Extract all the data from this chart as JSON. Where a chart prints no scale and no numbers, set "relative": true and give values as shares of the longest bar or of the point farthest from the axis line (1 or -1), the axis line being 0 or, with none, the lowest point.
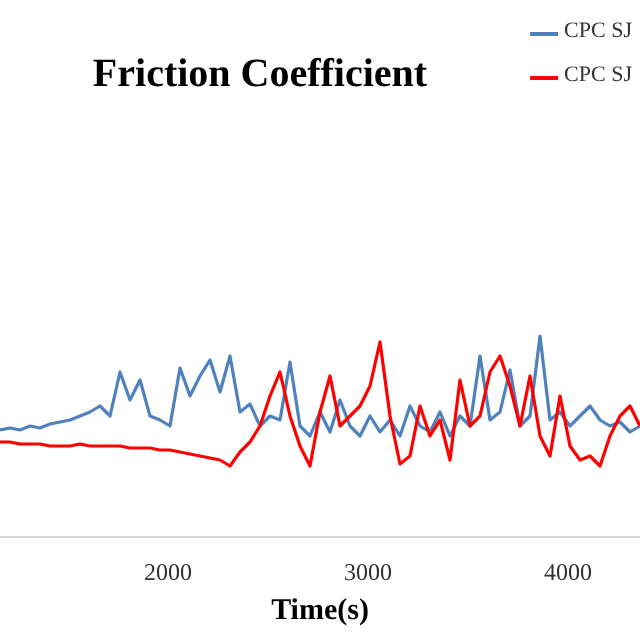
{
  "chart_data": {
    "type": "line",
    "title": "Friction Coefficient",
    "xlabel": "Time(s)",
    "relative": true,
    "xlim": [
      1160,
      4360
    ],
    "xticks": [
      2000,
      3000,
      4000
    ],
    "legend": "top right",
    "marker": "none",
    "line_style": "solid",
    "x": [
      1160,
      1210,
      1260,
      1310,
      1360,
      1410,
      1460,
      1510,
      1560,
      1610,
      1660,
      1710,
      1760,
      1810,
      1860,
      1910,
      1960,
      2010,
      2060,
      2110,
      2160,
      2210,
      2260,
      2310,
      2360,
      2410,
      2460,
      2510,
      2560,
      2610,
      2660,
      2710,
      2760,
      2810,
      2860,
      2910,
      2960,
      3010,
      3060,
      3110,
      3160,
      3210,
      3260,
      3310,
      3360,
      3410,
      3460,
      3510,
      3560,
      3610,
      3660,
      3710,
      3760,
      3810,
      3860,
      3910,
      3960,
      4010,
      4060,
      4110,
      4160,
      4210,
      4260,
      4310,
      4360
    ],
    "series": [
      {
        "name": "CPC SJ",
        "color": "#4f81bd",
        "values": [
          0.53,
          0.54,
          0.53,
          0.55,
          0.54,
          0.56,
          0.57,
          0.58,
          0.6,
          0.62,
          0.65,
          0.6,
          0.82,
          0.68,
          0.78,
          0.6,
          0.58,
          0.55,
          0.84,
          0.7,
          0.8,
          0.88,
          0.72,
          0.9,
          0.62,
          0.66,
          0.55,
          0.6,
          0.58,
          0.87,
          0.55,
          0.5,
          0.62,
          0.52,
          0.68,
          0.55,
          0.5,
          0.6,
          0.52,
          0.58,
          0.5,
          0.65,
          0.55,
          0.52,
          0.62,
          0.5,
          0.6,
          0.55,
          0.9,
          0.58,
          0.62,
          0.83,
          0.55,
          0.6,
          1.0,
          0.58,
          0.62,
          0.55,
          0.6,
          0.65,
          0.58,
          0.55,
          0.57,
          0.52,
          0.55
        ]
      },
      {
        "name": "CPC SJ",
        "color": "#ff0000",
        "values": [
          0.47,
          0.47,
          0.46,
          0.46,
          0.46,
          0.45,
          0.45,
          0.45,
          0.46,
          0.45,
          0.45,
          0.45,
          0.45,
          0.44,
          0.44,
          0.44,
          0.43,
          0.43,
          0.42,
          0.41,
          0.4,
          0.39,
          0.38,
          0.35,
          0.42,
          0.47,
          0.55,
          0.7,
          0.82,
          0.6,
          0.45,
          0.35,
          0.62,
          0.8,
          0.55,
          0.6,
          0.65,
          0.75,
          0.97,
          0.6,
          0.36,
          0.4,
          0.65,
          0.5,
          0.58,
          0.38,
          0.78,
          0.55,
          0.6,
          0.82,
          0.9,
          0.75,
          0.55,
          0.8,
          0.5,
          0.4,
          0.7,
          0.45,
          0.38,
          0.4,
          0.35,
          0.5,
          0.6,
          0.65,
          0.55
        ]
      }
    ]
  }
}
